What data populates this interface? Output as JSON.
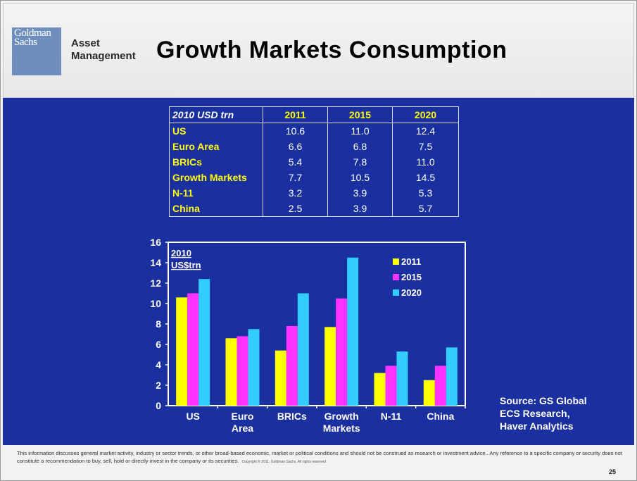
{
  "header": {
    "logo_line1": "Goldman",
    "logo_line2": "Sachs",
    "am_line1": "Asset",
    "am_line2": "Management",
    "title": "Growth Markets Consumption"
  },
  "table": {
    "corner": "2010 USD trn",
    "columns": [
      "2011",
      "2015",
      "2020"
    ],
    "rows": [
      {
        "label": "US",
        "values": [
          "10.6",
          "11.0",
          "12.4"
        ]
      },
      {
        "label": "Euro Area",
        "values": [
          "6.6",
          "6.8",
          "7.5"
        ]
      },
      {
        "label": "BRICs",
        "values": [
          "5.4",
          "7.8",
          "11.0"
        ]
      },
      {
        "label": "Growth Markets",
        "values": [
          "7.7",
          "10.5",
          "14.5"
        ]
      },
      {
        "label": "N-11",
        "values": [
          "3.2",
          "3.9",
          "5.3"
        ]
      },
      {
        "label": "China",
        "values": [
          "2.5",
          "3.9",
          "5.7"
        ]
      }
    ]
  },
  "chart_data": {
    "type": "bar",
    "unit_label_line1": "2010",
    "unit_label_line2": "US$trn",
    "categories": [
      [
        "US"
      ],
      [
        "Euro",
        "Area"
      ],
      [
        "BRICs"
      ],
      [
        "Growth",
        "Markets"
      ],
      [
        "N-11"
      ],
      [
        "China"
      ]
    ],
    "series": [
      {
        "name": "2011",
        "color": "#ffff00",
        "values": [
          10.6,
          6.6,
          5.4,
          7.7,
          3.2,
          2.5
        ]
      },
      {
        "name": "2015",
        "color": "#ff33ff",
        "values": [
          11.0,
          6.8,
          7.8,
          10.5,
          3.9,
          3.9
        ]
      },
      {
        "name": "2020",
        "color": "#33ccff",
        "values": [
          12.4,
          7.5,
          11.0,
          14.5,
          5.3,
          5.7
        ]
      }
    ],
    "ylim": [
      0,
      16
    ],
    "yticks": [
      0,
      2,
      4,
      6,
      8,
      10,
      12,
      14,
      16
    ],
    "legend_position": "top-right"
  },
  "source": {
    "line1": "Source: GS Global",
    "line2": "ECS Research,",
    "line3": "Haver Analytics"
  },
  "footer": {
    "disclaimer": "This information discusses general market activity, industry or sector trends, or other broad-based economic, market or political conditions and should not be construed as research or investment advice.. Any reference to a specific company or security does not constitute a recommendation to buy, sell, hold or directly invest in the company or its securities.",
    "copyright": "Copyright © 2011, Goldman Sachs. All rights reserved",
    "page_number": "25"
  }
}
